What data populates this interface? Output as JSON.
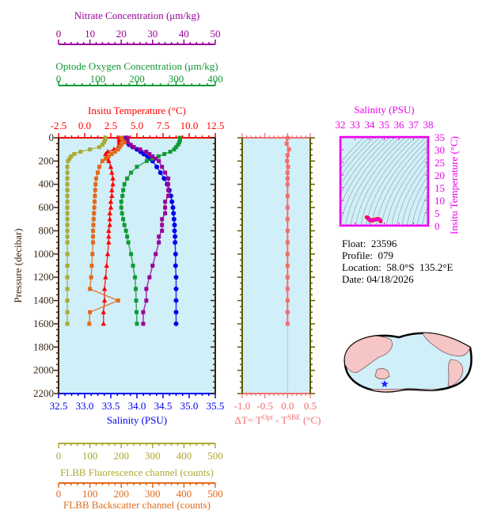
{
  "info": {
    "float_label": "Float:",
    "float": "23596",
    "profile_label": "Profile:",
    "profile": "079",
    "location_label": "Location:",
    "location": "58.0°S  135.2°E",
    "date_label": "Date:",
    "date": "04/18/2026"
  },
  "colors": {
    "temperature": "#ff0000",
    "salinity": "#0000ee",
    "oxygen": "#119933",
    "nitrate": "#990099",
    "fluorescence": "#aaaa33",
    "backscatter": "#e06a1a",
    "delta_t": "#f26d6d",
    "ts": "#ee00ee",
    "plot_bg": "#d0eff8",
    "pressure_axis": "#3a2410",
    "delta_axis": "#5c5c00"
  },
  "chart_data": [
    {
      "type": "line",
      "title": "Float profile (multi-parameter vs pressure)",
      "ylabel": "Pressure (decibar)",
      "ylim": [
        2200,
        0
      ],
      "yticks": [
        "0",
        "200",
        "400",
        "600",
        "800",
        "1000",
        "1200",
        "1400",
        "1600",
        "1800",
        "2000",
        "2200"
      ],
      "axes": {
        "nitrate": {
          "label": "Nitrate Concentration (μm/kg)",
          "ticks": [
            "0",
            "10",
            "20",
            "30",
            "40",
            "50"
          ],
          "range": [
            0,
            50
          ]
        },
        "oxygen": {
          "label": "Optode Oxygen Concentration (μm/kg)",
          "ticks": [
            "0",
            "100",
            "200",
            "300",
            "400"
          ],
          "range": [
            0,
            400
          ]
        },
        "temperature": {
          "label": "Insitu Temperature (°C)",
          "ticks": [
            "-2.5",
            "0.0",
            "2.5",
            "5.0",
            "7.5",
            "10.0",
            "12.5"
          ],
          "range": [
            -2.5,
            12.5
          ]
        },
        "salinity": {
          "label": "Salinity (PSU)",
          "ticks": [
            "32.5",
            "33.0",
            "33.5",
            "34.0",
            "34.5",
            "35.0",
            "35.5"
          ],
          "range": [
            32.5,
            35.5
          ]
        },
        "fluorescence": {
          "label": "FLBB Fluorescence channel (counts)",
          "ticks": [
            "0",
            "100",
            "200",
            "300",
            "400",
            "500"
          ],
          "range": [
            0,
            500
          ]
        },
        "backscatter": {
          "label": "FLBB Backscatter channel (counts)",
          "ticks": [
            "0",
            "100",
            "200",
            "300",
            "400",
            "500"
          ],
          "range": [
            0,
            500
          ]
        }
      },
      "pressure": [
        0,
        20,
        40,
        60,
        80,
        100,
        120,
        140,
        160,
        180,
        200,
        250,
        300,
        350,
        400,
        450,
        500,
        550,
        600,
        650,
        700,
        750,
        800,
        850,
        900,
        1000,
        1100,
        1200,
        1300,
        1400,
        1500,
        1600
      ],
      "series": [
        {
          "name": "Temperature",
          "axis": "temperature",
          "values": [
            3.3,
            3.3,
            3.3,
            3.3,
            3.2,
            2.8,
            2.2,
            2.0,
            2.1,
            2.2,
            2.3,
            2.5,
            2.6,
            2.7,
            2.7,
            2.6,
            2.6,
            2.5,
            2.5,
            2.4,
            2.4,
            2.4,
            2.3,
            2.3,
            2.3,
            2.2,
            2.1,
            2.0,
            1.9,
            1.9,
            1.8,
            1.8
          ]
        },
        {
          "name": "Salinity",
          "axis": "salinity",
          "values": [
            33.8,
            33.8,
            33.82,
            33.85,
            33.92,
            34.0,
            34.07,
            34.13,
            34.2,
            34.25,
            34.3,
            34.38,
            34.45,
            34.52,
            34.58,
            34.62,
            34.65,
            34.67,
            34.69,
            34.7,
            34.71,
            34.72,
            34.72,
            34.73,
            34.73,
            34.74,
            34.74,
            34.75,
            34.75,
            34.75,
            34.75,
            34.75
          ]
        },
        {
          "name": "Oxygen",
          "axis": "oxygen",
          "values": [
            310,
            310,
            308,
            305,
            300,
            295,
            285,
            270,
            255,
            240,
            225,
            200,
            185,
            175,
            168,
            165,
            163,
            160,
            160,
            162,
            165,
            168,
            172,
            175,
            178,
            185,
            190,
            195,
            197,
            198,
            199,
            200
          ]
        },
        {
          "name": "Nitrate",
          "axis": "nitrate",
          "values": [
            22,
            22,
            22,
            23,
            24,
            26,
            28,
            29,
            30,
            31,
            32,
            33,
            34,
            35,
            35,
            35,
            35,
            34,
            34,
            34,
            33,
            33,
            33,
            32,
            32,
            31,
            30,
            29,
            28,
            28,
            27,
            27
          ]
        },
        {
          "name": "Fluorescence",
          "axis": "fluorescence",
          "values": [
            150,
            148,
            145,
            140,
            130,
            100,
            70,
            50,
            40,
            35,
            30,
            28,
            28,
            28,
            28,
            28,
            28,
            28,
            28,
            28,
            28,
            28,
            28,
            28,
            28,
            28,
            28,
            28,
            28,
            28,
            28,
            28
          ]
        },
        {
          "name": "Backscatter",
          "axis": "backscatter",
          "values": [
            200,
            205,
            210,
            200,
            195,
            190,
            180,
            170,
            160,
            150,
            140,
            130,
            125,
            120,
            118,
            117,
            116,
            115,
            114,
            113,
            112,
            111,
            110,
            110,
            110,
            108,
            106,
            104,
            100,
            190,
            100,
            98
          ]
        }
      ]
    },
    {
      "type": "line",
      "title": "Temperature difference",
      "xlabel": "ΔT= T^Opt - T^SBE (°C)",
      "xticks": [
        "-1.0",
        "-0.5",
        "0.0",
        "0.5"
      ],
      "xlim": [
        -1.0,
        0.5
      ],
      "ylim": [
        2200,
        0
      ],
      "pressure": [
        0,
        50,
        100,
        150,
        200,
        250,
        300,
        350,
        400,
        500,
        600,
        700,
        800,
        900,
        1000,
        1100,
        1200,
        1300,
        1400,
        1500,
        1600
      ],
      "values": [
        0.0,
        -0.02,
        0.03,
        0.0,
        -0.01,
        0.01,
        0.0,
        0.0,
        0.0,
        0.0,
        0.0,
        0.0,
        0.0,
        0.0,
        0.0,
        0.0,
        0.0,
        0.0,
        0.0,
        0.0,
        0.0
      ]
    },
    {
      "type": "scatter",
      "title": "T-S diagram",
      "xlabel": "Salinity (PSU)",
      "ylabel": "Insitu Temperature (°C)",
      "xticks": [
        "32",
        "33",
        "34",
        "35",
        "36",
        "37",
        "38"
      ],
      "yticks": [
        "0",
        "5",
        "10",
        "15",
        "20",
        "25",
        "30",
        "35"
      ],
      "xlim": [
        32,
        38
      ],
      "ylim": [
        0,
        35
      ],
      "points": [
        [
          33.8,
          3.3
        ],
        [
          33.9,
          3.0
        ],
        [
          34.0,
          2.2
        ],
        [
          34.2,
          2.1
        ],
        [
          34.3,
          2.3
        ],
        [
          34.5,
          2.6
        ],
        [
          34.6,
          2.6
        ],
        [
          34.7,
          2.4
        ],
        [
          34.75,
          1.8
        ]
      ]
    }
  ]
}
